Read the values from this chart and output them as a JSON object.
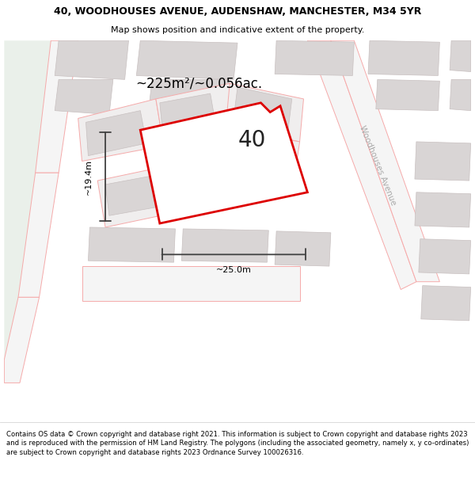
{
  "title": "40, WOODHOUSES AVENUE, AUDENSHAW, MANCHESTER, M34 5YR",
  "subtitle": "Map shows position and indicative extent of the property.",
  "footer": "Contains OS data © Crown copyright and database right 2021. This information is subject to Crown copyright and database rights 2023 and is reproduced with the permission of HM Land Registry. The polygons (including the associated geometry, namely x, y co-ordinates) are subject to Crown copyright and database rights 2023 Ordnance Survey 100026316.",
  "area_label": "~225m²/~0.056ac.",
  "width_label": "~25.0m",
  "height_label": "~19.4m",
  "house_number": "40",
  "map_bg": "#f7f4f4",
  "plot_fill": "#ffffff",
  "plot_outline_color": "#dd0000",
  "road_line_color": "#f5aaaa",
  "building_fill": "#d9d5d5",
  "building_edge": "#c8c0c0",
  "lot_line_color": "#f5aaaa",
  "street_name": "Woodhouses Avenue",
  "green_color": "#eaf0ea",
  "dim_line_color": "#404040"
}
